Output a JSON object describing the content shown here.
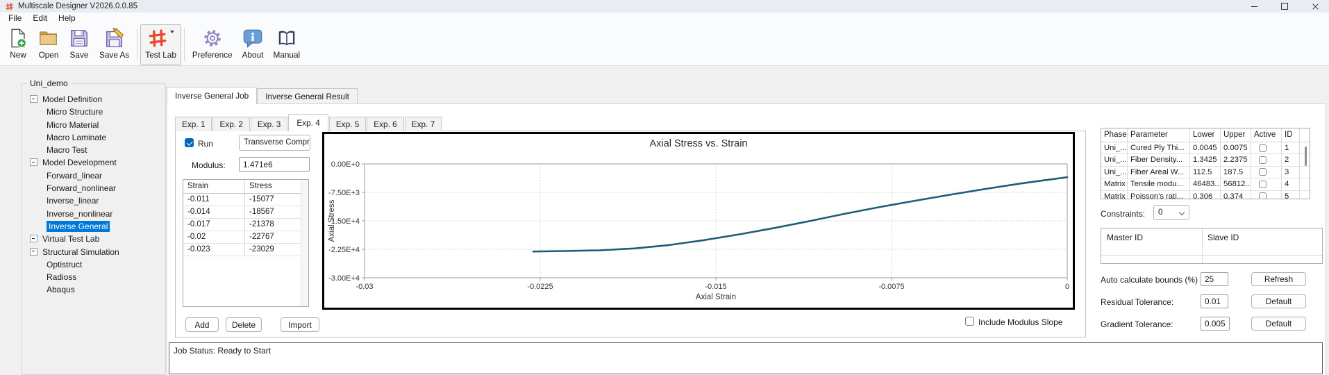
{
  "window": {
    "title": "Multiscale Designer V2026.0.0.85"
  },
  "menu": {
    "items": [
      "File",
      "Edit",
      "Help"
    ]
  },
  "toolbar": {
    "new_label": "New",
    "open_label": "Open",
    "save_label": "Save",
    "save_as_label": "Save As",
    "test_lab_label": "Test Lab",
    "preference_label": "Preference",
    "about_label": "About",
    "manual_label": "Manual"
  },
  "tree": {
    "group_label": "Uni_demo",
    "items": [
      {
        "label": "Model Definition",
        "type": "branch"
      },
      {
        "label": "Micro Structure",
        "type": "leaf"
      },
      {
        "label": "Micro Material",
        "type": "leaf"
      },
      {
        "label": "Macro Laminate",
        "type": "leaf"
      },
      {
        "label": "Macro Test",
        "type": "leaf"
      },
      {
        "label": "Model Development",
        "type": "branch"
      },
      {
        "label": "Forward_linear",
        "type": "leaf"
      },
      {
        "label": "Forward_nonlinear",
        "type": "leaf"
      },
      {
        "label": "Inverse_linear",
        "type": "leaf"
      },
      {
        "label": "Inverse_nonlinear",
        "type": "leaf"
      },
      {
        "label": "Inverse General",
        "type": "leaf",
        "selected": true
      },
      {
        "label": "Virtual Test Lab",
        "type": "branch"
      },
      {
        "label": "Structural Simulation",
        "type": "branch"
      },
      {
        "label": "Optistruct",
        "type": "leaf"
      },
      {
        "label": "Radioss",
        "type": "leaf"
      },
      {
        "label": "Abaqus",
        "type": "leaf"
      }
    ]
  },
  "main_tabs": {
    "job": "Inverse General Job",
    "result": "Inverse General Result"
  },
  "exp_tabs": {
    "items": [
      "Exp. 1",
      "Exp. 2",
      "Exp. 3",
      "Exp. 4",
      "Exp. 5",
      "Exp. 6",
      "Exp. 7"
    ],
    "active_index": 3
  },
  "experiment": {
    "run_label": "Run",
    "run_checked": true,
    "test_type_value": "Transverse Compression",
    "modulus_label": "Modulus:",
    "modulus_value": "1.471e6",
    "data_table": {
      "headers": [
        "Strain",
        "Stress"
      ],
      "rows": [
        [
          "-0.011",
          "-15077"
        ],
        [
          "-0.014",
          "-18567"
        ],
        [
          "-0.017",
          "-21378"
        ],
        [
          "-0.02",
          "-22767"
        ],
        [
          "-0.023",
          "-23029"
        ]
      ]
    },
    "add_label": "Add",
    "delete_label": "Delete",
    "import_label": "Import",
    "include_modulus_label": "Include Modulus Slope",
    "include_modulus_checked": false
  },
  "chart_data": {
    "type": "line",
    "title": "Axial Stress vs. Strain",
    "xlabel": "Axial Strain",
    "ylabel": "Axial Stress",
    "xlim": [
      -0.03,
      0
    ],
    "ylim": [
      -30000,
      0
    ],
    "x_ticks": [
      -0.03,
      -0.0225,
      -0.015,
      -0.0075,
      0
    ],
    "x_tick_labels": [
      "-0.03",
      "-0.0225",
      "-0.015",
      "-0.0075",
      "0"
    ],
    "y_ticks": [
      0,
      -7500,
      -15000,
      -22500,
      -30000
    ],
    "y_tick_labels": [
      "0.00E+0",
      "-7.50E+3",
      "-1.50E+4",
      "-2.25E+4",
      "-3.00E+4"
    ],
    "grid": true,
    "legend": "none",
    "table_points": {
      "strain": [
        -0.011,
        -0.014,
        -0.017,
        -0.02,
        -0.023
      ],
      "stress": [
        -15077,
        -18567,
        -21378,
        -22767,
        -23029
      ]
    },
    "series": [
      {
        "name": "stress-strain-curve",
        "color": "#1d5c77",
        "points": [
          [
            -0.0228,
            -23090
          ],
          [
            -0.0215,
            -22950
          ],
          [
            -0.02,
            -22767
          ],
          [
            -0.0185,
            -22280
          ],
          [
            -0.017,
            -21378
          ],
          [
            -0.0155,
            -20090
          ],
          [
            -0.014,
            -18567
          ],
          [
            -0.0125,
            -16880
          ],
          [
            -0.011,
            -15077
          ],
          [
            -0.0095,
            -13160
          ],
          [
            -0.008,
            -11360
          ],
          [
            -0.0065,
            -9710
          ],
          [
            -0.005,
            -8130
          ],
          [
            -0.0035,
            -6600
          ],
          [
            -0.002,
            -5180
          ],
          [
            -0.001,
            -4330
          ],
          [
            0,
            -3520
          ]
        ]
      }
    ]
  },
  "parameters_table": {
    "headers": [
      "Phase",
      "Parameter",
      "Lower",
      "Upper",
      "Active",
      "ID"
    ],
    "rows": [
      {
        "phase": "Uni_...",
        "parameter": "Cured Ply Thi...",
        "lower": "0.0045",
        "upper": "0.0075",
        "active": false,
        "id": "1"
      },
      {
        "phase": "Uni_...",
        "parameter": "Fiber Density...",
        "lower": "1.3425",
        "upper": "2.2375",
        "active": false,
        "id": "2"
      },
      {
        "phase": "Uni_...",
        "parameter": "Fiber Areal W...",
        "lower": "112.5",
        "upper": "187.5",
        "active": false,
        "id": "3"
      },
      {
        "phase": "Matrix",
        "parameter": "Tensile modu...",
        "lower": "46483...",
        "upper": "56812...",
        "active": false,
        "id": "4"
      },
      {
        "phase": "Matrix",
        "parameter": "Poisson's rati...",
        "lower": "0.306",
        "upper": "0.374",
        "active": false,
        "id": "5"
      }
    ]
  },
  "constraints": {
    "label": "Constraints:",
    "value": "0"
  },
  "master_slave": {
    "master_header": "Master ID",
    "slave_header": "Slave ID"
  },
  "settings": {
    "auto_bounds_label": "Auto calculate bounds (%)",
    "auto_bounds_value": "25",
    "refresh_label": "Refresh",
    "residual_label": "Residual Tolerance:",
    "residual_value": "0.01",
    "gradient_label": "Gradient Tolerance:",
    "gradient_value": "0.005",
    "default_label": "Default"
  },
  "status": {
    "text": "Job Status: Ready to Start"
  }
}
